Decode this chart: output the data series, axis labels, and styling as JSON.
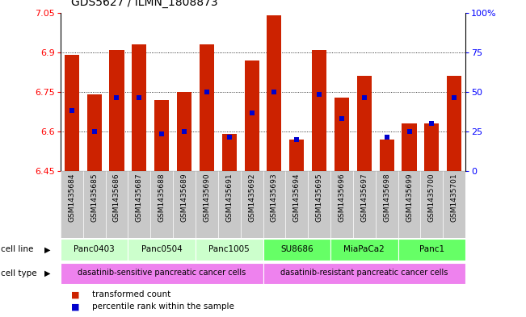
{
  "title": "GDS5627 / ILMN_1808873",
  "samples": [
    "GSM1435684",
    "GSM1435685",
    "GSM1435686",
    "GSM1435687",
    "GSM1435688",
    "GSM1435689",
    "GSM1435690",
    "GSM1435691",
    "GSM1435692",
    "GSM1435693",
    "GSM1435694",
    "GSM1435695",
    "GSM1435696",
    "GSM1435697",
    "GSM1435698",
    "GSM1435699",
    "GSM1435700",
    "GSM1435701"
  ],
  "bar_values": [
    6.89,
    6.74,
    6.91,
    6.93,
    6.72,
    6.75,
    6.93,
    6.59,
    6.87,
    7.04,
    6.57,
    6.91,
    6.73,
    6.81,
    6.57,
    6.63,
    6.63,
    6.81
  ],
  "percentile_values": [
    6.68,
    6.6,
    6.73,
    6.73,
    6.59,
    6.6,
    6.75,
    6.58,
    6.67,
    6.75,
    6.57,
    6.74,
    6.65,
    6.73,
    6.58,
    6.6,
    6.63,
    6.73
  ],
  "ymin": 6.45,
  "ymax": 7.05,
  "yticks": [
    6.45,
    6.6,
    6.75,
    6.9,
    7.05
  ],
  "ytick_labels": [
    "6.45",
    "6.6",
    "6.75",
    "6.9",
    "7.05"
  ],
  "right_yticks": [
    0,
    25,
    50,
    75,
    100
  ],
  "right_ytick_labels": [
    "0",
    "25",
    "50",
    "75",
    "100%"
  ],
  "bar_color": "#cc2200",
  "marker_color": "#0000cc",
  "sample_bg": "#c8c8c8",
  "cell_lines": [
    {
      "label": "Panc0403",
      "start": 0,
      "end": 2,
      "color": "#ccffcc"
    },
    {
      "label": "Panc0504",
      "start": 3,
      "end": 5,
      "color": "#ccffcc"
    },
    {
      "label": "Panc1005",
      "start": 6,
      "end": 8,
      "color": "#ccffcc"
    },
    {
      "label": "SU8686",
      "start": 9,
      "end": 11,
      "color": "#66ff66"
    },
    {
      "label": "MiaPaCa2",
      "start": 12,
      "end": 14,
      "color": "#66ff66"
    },
    {
      "label": "Panc1",
      "start": 15,
      "end": 17,
      "color": "#66ff66"
    }
  ],
  "cell_types": [
    {
      "label": "dasatinib-sensitive pancreatic cancer cells",
      "start": 0,
      "end": 8,
      "color": "#ee82ee"
    },
    {
      "label": "dasatinib-resistant pancreatic cancer cells",
      "start": 9,
      "end": 17,
      "color": "#ee82ee"
    }
  ],
  "grid_lines": [
    6.6,
    6.75,
    6.9
  ],
  "legend_items": [
    {
      "label": "transformed count",
      "color": "#cc2200"
    },
    {
      "label": "percentile rank within the sample",
      "color": "#0000cc"
    }
  ]
}
